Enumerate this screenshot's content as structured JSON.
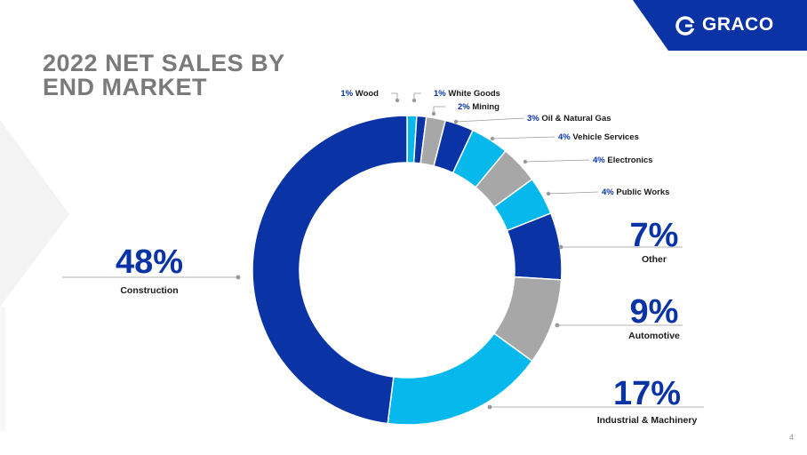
{
  "slide": {
    "title_line1": "2022 NET SALES BY",
    "title_line2": "END MARKET",
    "logo_text": "GRACO",
    "page_number": "4"
  },
  "colors": {
    "dark_blue": "#0a34a6",
    "light_blue": "#06b8ec",
    "gray": "#a7a7a7",
    "title_gray": "#7a7a7a"
  },
  "chart_data": {
    "type": "pie",
    "style": "donut",
    "segments": [
      {
        "label": "Wood",
        "pct_label": "1%",
        "value": 1,
        "color": "#06b8ec"
      },
      {
        "label": "White Goods",
        "pct_label": "1%",
        "value": 1,
        "color": "#0a34a6"
      },
      {
        "label": "Mining",
        "pct_label": "2%",
        "value": 2,
        "color": "#a7a7a7"
      },
      {
        "label": "Oil & Natural Gas",
        "pct_label": "3%",
        "value": 3,
        "color": "#0a34a6"
      },
      {
        "label": "Vehicle Services",
        "pct_label": "4%",
        "value": 4,
        "color": "#06b8ec"
      },
      {
        "label": "Electronics",
        "pct_label": "4%",
        "value": 4,
        "color": "#a7a7a7"
      },
      {
        "label": "Public Works",
        "pct_label": "4%",
        "value": 4,
        "color": "#06b8ec"
      },
      {
        "label": "Other",
        "pct_label": "7%",
        "value": 7,
        "color": "#0a34a6"
      },
      {
        "label": "Automotive",
        "pct_label": "9%",
        "value": 9,
        "color": "#a7a7a7"
      },
      {
        "label": "Industrial & Machinery",
        "pct_label": "17%",
        "value": 17,
        "color": "#06b8ec"
      },
      {
        "label": "Construction",
        "pct_label": "48%",
        "value": 48,
        "color": "#0a34a6"
      }
    ]
  }
}
